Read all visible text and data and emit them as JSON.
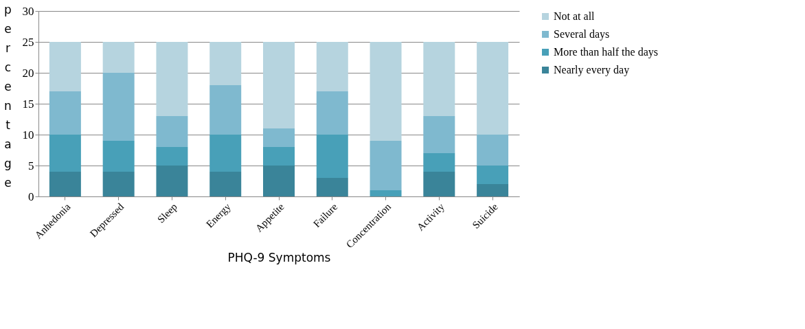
{
  "chart_data": {
    "type": "bar",
    "stacked": true,
    "xlabel": "PHQ-9 Symptoms",
    "ylabel": "percentage",
    "categories": [
      "Anhedonia",
      "Depressed",
      "Sleep",
      "Energy",
      "Appetite",
      "Failure",
      "Concentration",
      "Activity",
      "Suicide"
    ],
    "series": [
      {
        "name": "Nearly every day",
        "color": "#3a8499",
        "values": [
          4,
          4,
          5,
          4,
          5,
          3,
          0,
          4,
          2
        ]
      },
      {
        "name": "More than half the days",
        "color": "#48a0b8",
        "values": [
          6,
          5,
          3,
          6,
          3,
          7,
          1,
          3,
          3
        ]
      },
      {
        "name": "Several days",
        "color": "#7fb9cf",
        "values": [
          7,
          11,
          5,
          8,
          3,
          7,
          8,
          6,
          5
        ]
      },
      {
        "name": "Not at all",
        "color": "#b6d4df",
        "values": [
          8,
          5,
          12,
          7,
          14,
          8,
          16,
          12,
          15
        ]
      }
    ],
    "ylim": [
      0,
      30
    ],
    "yticks": [
      0,
      5,
      10,
      15,
      20,
      25,
      30
    ],
    "grid": "y",
    "legend": "right"
  }
}
